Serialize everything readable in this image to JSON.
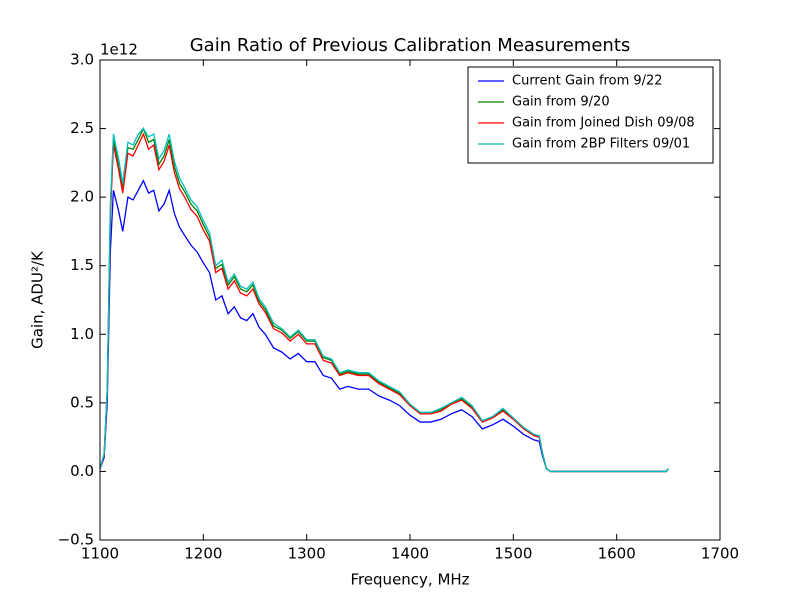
{
  "chart_data": {
    "type": "line",
    "title": "Gain Ratio of Previous Calibration Measurements",
    "xlabel": "Frequency, MHz",
    "ylabel": "Gain, ADU²/K",
    "y_offset_label": "1e12",
    "x": [
      1100,
      1104,
      1107,
      1110,
      1113,
      1118,
      1122,
      1127,
      1132,
      1137,
      1142,
      1147,
      1152,
      1157,
      1162,
      1167,
      1172,
      1177,
      1182,
      1188,
      1194,
      1200,
      1206,
      1212,
      1218,
      1224,
      1230,
      1236,
      1242,
      1248,
      1254,
      1260,
      1268,
      1276,
      1284,
      1292,
      1300,
      1308,
      1316,
      1324,
      1332,
      1340,
      1350,
      1360,
      1370,
      1380,
      1390,
      1400,
      1410,
      1420,
      1430,
      1440,
      1450,
      1460,
      1470,
      1480,
      1490,
      1500,
      1510,
      1520,
      1525,
      1528,
      1532,
      1536,
      1545,
      1600,
      1648,
      1650
    ],
    "series": [
      {
        "name": "Current Gain from 9/22",
        "color": "#0000ff",
        "values": [
          0.02,
          0.1,
          0.5,
          1.6,
          2.05,
          1.9,
          1.75,
          2.0,
          1.98,
          2.05,
          2.12,
          2.03,
          2.05,
          1.9,
          1.95,
          2.05,
          1.88,
          1.78,
          1.72,
          1.65,
          1.6,
          1.52,
          1.45,
          1.25,
          1.28,
          1.15,
          1.2,
          1.12,
          1.1,
          1.15,
          1.05,
          1.0,
          0.9,
          0.87,
          0.82,
          0.86,
          0.8,
          0.8,
          0.7,
          0.68,
          0.6,
          0.62,
          0.6,
          0.6,
          0.55,
          0.52,
          0.48,
          0.41,
          0.36,
          0.36,
          0.38,
          0.42,
          0.45,
          0.4,
          0.31,
          0.34,
          0.38,
          0.33,
          0.27,
          0.23,
          0.22,
          0.12,
          0.02,
          0.0,
          0.0,
          0.0,
          0.0,
          0.02
        ]
      },
      {
        "name": "Gain from 9/20",
        "color": "#008000",
        "values": [
          0.02,
          0.12,
          0.59,
          1.9,
          2.42,
          2.24,
          2.07,
          2.36,
          2.35,
          2.42,
          2.5,
          2.4,
          2.42,
          2.24,
          2.3,
          2.42,
          2.22,
          2.1,
          2.04,
          1.95,
          1.9,
          1.8,
          1.71,
          1.48,
          1.51,
          1.36,
          1.42,
          1.33,
          1.31,
          1.36,
          1.24,
          1.18,
          1.06,
          1.03,
          0.97,
          1.02,
          0.95,
          0.95,
          0.83,
          0.81,
          0.71,
          0.73,
          0.71,
          0.71,
          0.65,
          0.61,
          0.57,
          0.49,
          0.43,
          0.43,
          0.45,
          0.5,
          0.53,
          0.47,
          0.37,
          0.4,
          0.45,
          0.39,
          0.32,
          0.27,
          0.26,
          0.14,
          0.02,
          0.0,
          0.0,
          0.0,
          0.0,
          0.02
        ]
      },
      {
        "name": "Gain from Joined Dish 09/08",
        "color": "#ff0000",
        "values": [
          0.02,
          0.12,
          0.58,
          1.86,
          2.38,
          2.2,
          2.03,
          2.32,
          2.3,
          2.38,
          2.46,
          2.35,
          2.38,
          2.2,
          2.26,
          2.38,
          2.18,
          2.06,
          2.0,
          1.91,
          1.86,
          1.76,
          1.68,
          1.45,
          1.48,
          1.33,
          1.39,
          1.3,
          1.28,
          1.33,
          1.22,
          1.16,
          1.04,
          1.01,
          0.95,
          1.0,
          0.93,
          0.93,
          0.81,
          0.79,
          0.7,
          0.72,
          0.7,
          0.7,
          0.64,
          0.6,
          0.56,
          0.48,
          0.42,
          0.42,
          0.44,
          0.49,
          0.52,
          0.46,
          0.36,
          0.39,
          0.44,
          0.38,
          0.31,
          0.26,
          0.25,
          0.14,
          0.02,
          0.0,
          0.0,
          0.0,
          0.0,
          0.02
        ]
      },
      {
        "name": "Gain from 2BP Filters 09/01",
        "color": "#00bfbf",
        "values": [
          0.02,
          0.13,
          0.6,
          1.94,
          2.46,
          2.28,
          2.1,
          2.4,
          2.38,
          2.46,
          2.5,
          2.44,
          2.46,
          2.28,
          2.34,
          2.46,
          2.26,
          2.14,
          2.07,
          1.98,
          1.93,
          1.83,
          1.74,
          1.5,
          1.54,
          1.38,
          1.44,
          1.35,
          1.33,
          1.38,
          1.26,
          1.2,
          1.08,
          1.04,
          0.98,
          1.03,
          0.96,
          0.96,
          0.84,
          0.82,
          0.72,
          0.74,
          0.72,
          0.72,
          0.66,
          0.62,
          0.58,
          0.49,
          0.43,
          0.43,
          0.46,
          0.5,
          0.54,
          0.48,
          0.37,
          0.4,
          0.46,
          0.39,
          0.32,
          0.27,
          0.26,
          0.14,
          0.02,
          0.0,
          0.0,
          0.0,
          0.0,
          0.02
        ]
      }
    ],
    "xlim": [
      1100,
      1700
    ],
    "xticks": [
      1100,
      1200,
      1300,
      1400,
      1500,
      1600,
      1700
    ],
    "ylim": [
      -0.5,
      3.0
    ],
    "yticks": [
      {
        "value": -0.5,
        "label": "−0.5"
      },
      {
        "value": 0,
        "label": "0.0"
      },
      0.5,
      {
        "value": 1,
        "label": "1.0"
      },
      1.5,
      {
        "value": 2,
        "label": "2.0"
      },
      2.5,
      {
        "value": 3,
        "label": "3.0"
      }
    ],
    "legend": "upper right",
    "grid": false
  }
}
